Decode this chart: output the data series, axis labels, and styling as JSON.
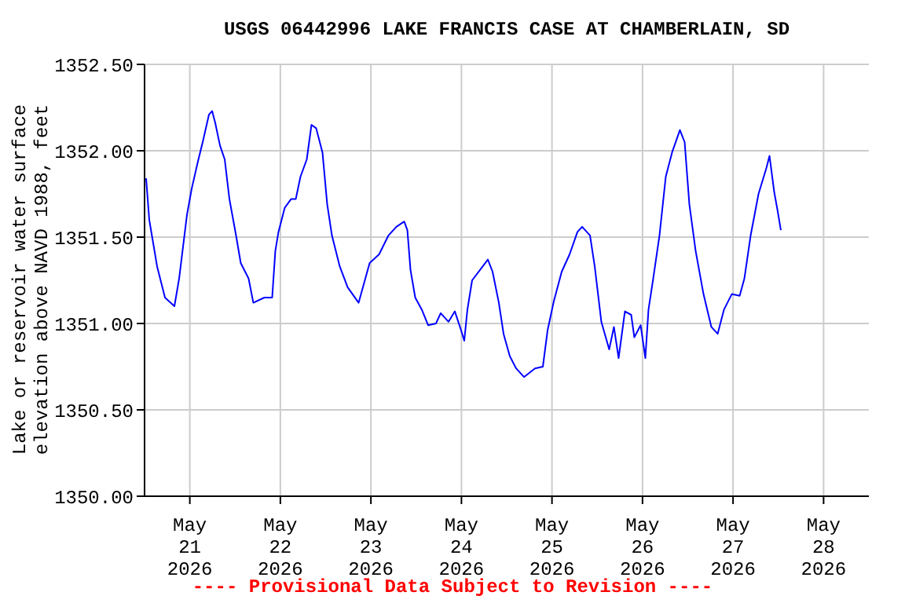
{
  "chart_data": {
    "type": "line",
    "title": "USGS 06442996 LAKE FRANCIS CASE AT CHAMBERLAIN, SD",
    "ylabel": "Lake or reservoir water surface\nelevation above NAVD 1988, feet",
    "annotations": [
      "---- Provisional Data Subject to Revision ----"
    ],
    "x": [
      "2026-05-20T12:25",
      "2026-05-20T13:15",
      "2026-05-20T15:20",
      "2026-05-20T17:25",
      "2026-05-20T19:55",
      "2026-05-20T21:10",
      "2026-05-20T23:15",
      "2026-05-21T00:30",
      "2026-05-21T02:10",
      "2026-05-21T03:25",
      "2026-05-21T05:05",
      "2026-05-21T05:55",
      "2026-05-21T06:45",
      "2026-05-21T08:00",
      "2026-05-21T09:15",
      "2026-05-21T10:30",
      "2026-05-21T12:15",
      "2026-05-21T13:30",
      "2026-05-21T15:35",
      "2026-05-21T16:50",
      "2026-05-21T19:45",
      "2026-05-21T21:50",
      "2026-05-21T22:40",
      "2026-05-21T23:30",
      "2026-05-22T01:10",
      "2026-05-22T02:50",
      "2026-05-22T04:05",
      "2026-05-22T05:20",
      "2026-05-22T07:00",
      "2026-05-22T08:15",
      "2026-05-22T09:30",
      "2026-05-22T11:10",
      "2026-05-22T12:25",
      "2026-05-22T13:40",
      "2026-05-22T15:45",
      "2026-05-22T17:50",
      "2026-05-22T20:45",
      "2026-05-22T23:40",
      "2026-05-23T02:10",
      "2026-05-23T04:40",
      "2026-05-23T06:45",
      "2026-05-23T08:50",
      "2026-05-23T09:40",
      "2026-05-23T10:30",
      "2026-05-23T11:45",
      "2026-05-23T13:30",
      "2026-05-23T15:10",
      "2026-05-23T17:15",
      "2026-05-23T18:30",
      "2026-05-23T20:35",
      "2026-05-23T22:15",
      "2026-05-23T23:55",
      "2026-05-24T00:45",
      "2026-05-24T01:35",
      "2026-05-24T02:50",
      "2026-05-24T04:55",
      "2026-05-24T07:00",
      "2026-05-24T08:15",
      "2026-05-24T09:55",
      "2026-05-24T11:10",
      "2026-05-24T12:50",
      "2026-05-24T14:30",
      "2026-05-24T16:35",
      "2026-05-24T19:30",
      "2026-05-24T21:35",
      "2026-05-24T22:50",
      "2026-05-25T00:30",
      "2026-05-25T02:35",
      "2026-05-25T04:40",
      "2026-05-25T06:45",
      "2026-05-25T08:00",
      "2026-05-25T10:05",
      "2026-05-25T11:20",
      "2026-05-25T13:05",
      "2026-05-25T15:10",
      "2026-05-25T16:25",
      "2026-05-25T17:40",
      "2026-05-25T19:20",
      "2026-05-25T21:00",
      "2026-05-25T21:50",
      "2026-05-25T23:30",
      "2026-05-26T00:45",
      "2026-05-26T01:35",
      "2026-05-26T02:50",
      "2026-05-26T04:30",
      "2026-05-26T06:10",
      "2026-05-26T07:50",
      "2026-05-26T09:55",
      "2026-05-26T11:10",
      "2026-05-26T12:25",
      "2026-05-26T14:05",
      "2026-05-26T16:10",
      "2026-05-26T18:15",
      "2026-05-26T19:55",
      "2026-05-26T21:35",
      "2026-05-26T23:40",
      "2026-05-27T01:45",
      "2026-05-27T03:00",
      "2026-05-27T04:40",
      "2026-05-27T06:45",
      "2026-05-27T08:50",
      "2026-05-27T09:40",
      "2026-05-27T10:55",
      "2026-05-27T11:45",
      "2026-05-27T12:40"
    ],
    "series": [
      {
        "color": "#0000ff",
        "values": [
          1351.84,
          1351.6,
          1351.33,
          1351.15,
          1351.1,
          1351.26,
          1351.63,
          1351.78,
          1351.94,
          1352.05,
          1352.21,
          1352.23,
          1352.16,
          1352.03,
          1351.95,
          1351.72,
          1351.51,
          1351.35,
          1351.26,
          1351.12,
          1351.15,
          1351.15,
          1351.42,
          1351.53,
          1351.67,
          1351.72,
          1351.72,
          1351.85,
          1351.95,
          1352.15,
          1352.13,
          1351.99,
          1351.69,
          1351.51,
          1351.33,
          1351.21,
          1351.12,
          1351.35,
          1351.4,
          1351.51,
          1351.56,
          1351.59,
          1351.54,
          1351.31,
          1351.15,
          1351.08,
          1350.99,
          1351.0,
          1351.06,
          1351.01,
          1351.07,
          1350.96,
          1350.9,
          1351.08,
          1351.25,
          1351.31,
          1351.37,
          1351.3,
          1351.12,
          1350.94,
          1350.81,
          1350.74,
          1350.69,
          1350.74,
          1350.75,
          1350.96,
          1351.13,
          1351.3,
          1351.4,
          1351.53,
          1351.56,
          1351.51,
          1351.33,
          1351.01,
          1350.85,
          1350.98,
          1350.8,
          1351.07,
          1351.05,
          1350.92,
          1350.99,
          1350.8,
          1351.08,
          1351.26,
          1351.51,
          1351.85,
          1351.99,
          1352.12,
          1352.05,
          1351.69,
          1351.42,
          1351.17,
          1350.98,
          1350.94,
          1351.08,
          1351.17,
          1351.16,
          1351.26,
          1351.51,
          1351.75,
          1351.9,
          1351.97,
          1351.76,
          1351.66,
          1351.54
        ]
      }
    ],
    "xlim": [
      "2026-05-20T12:00",
      "2026-05-28T12:00"
    ],
    "xticks": [
      {
        "value": "2026-05-21",
        "label": "May\n21\n2026"
      },
      {
        "value": "2026-05-22",
        "label": "May\n22\n2026"
      },
      {
        "value": "2026-05-23",
        "label": "May\n23\n2026"
      },
      {
        "value": "2026-05-24",
        "label": "May\n24\n2026"
      },
      {
        "value": "2026-05-25",
        "label": "May\n25\n2026"
      },
      {
        "value": "2026-05-26",
        "label": "May\n26\n2026"
      },
      {
        "value": "2026-05-27",
        "label": "May\n27\n2026"
      },
      {
        "value": "2026-05-28",
        "label": "May\n28\n2026"
      }
    ],
    "ylim": [
      1350,
      1352.5
    ],
    "yticks": [
      {
        "value": 1350,
        "label": "1350.00"
      },
      {
        "value": 1350.5,
        "label": "1350.50"
      },
      {
        "value": 1351,
        "label": "1351.00"
      },
      {
        "value": 1351.5,
        "label": "1351.50"
      },
      {
        "value": 1352,
        "label": "1352.00"
      },
      {
        "value": 1352.5,
        "label": "1352.50"
      }
    ],
    "grid": true,
    "marker": "none",
    "line_style": "solid"
  }
}
